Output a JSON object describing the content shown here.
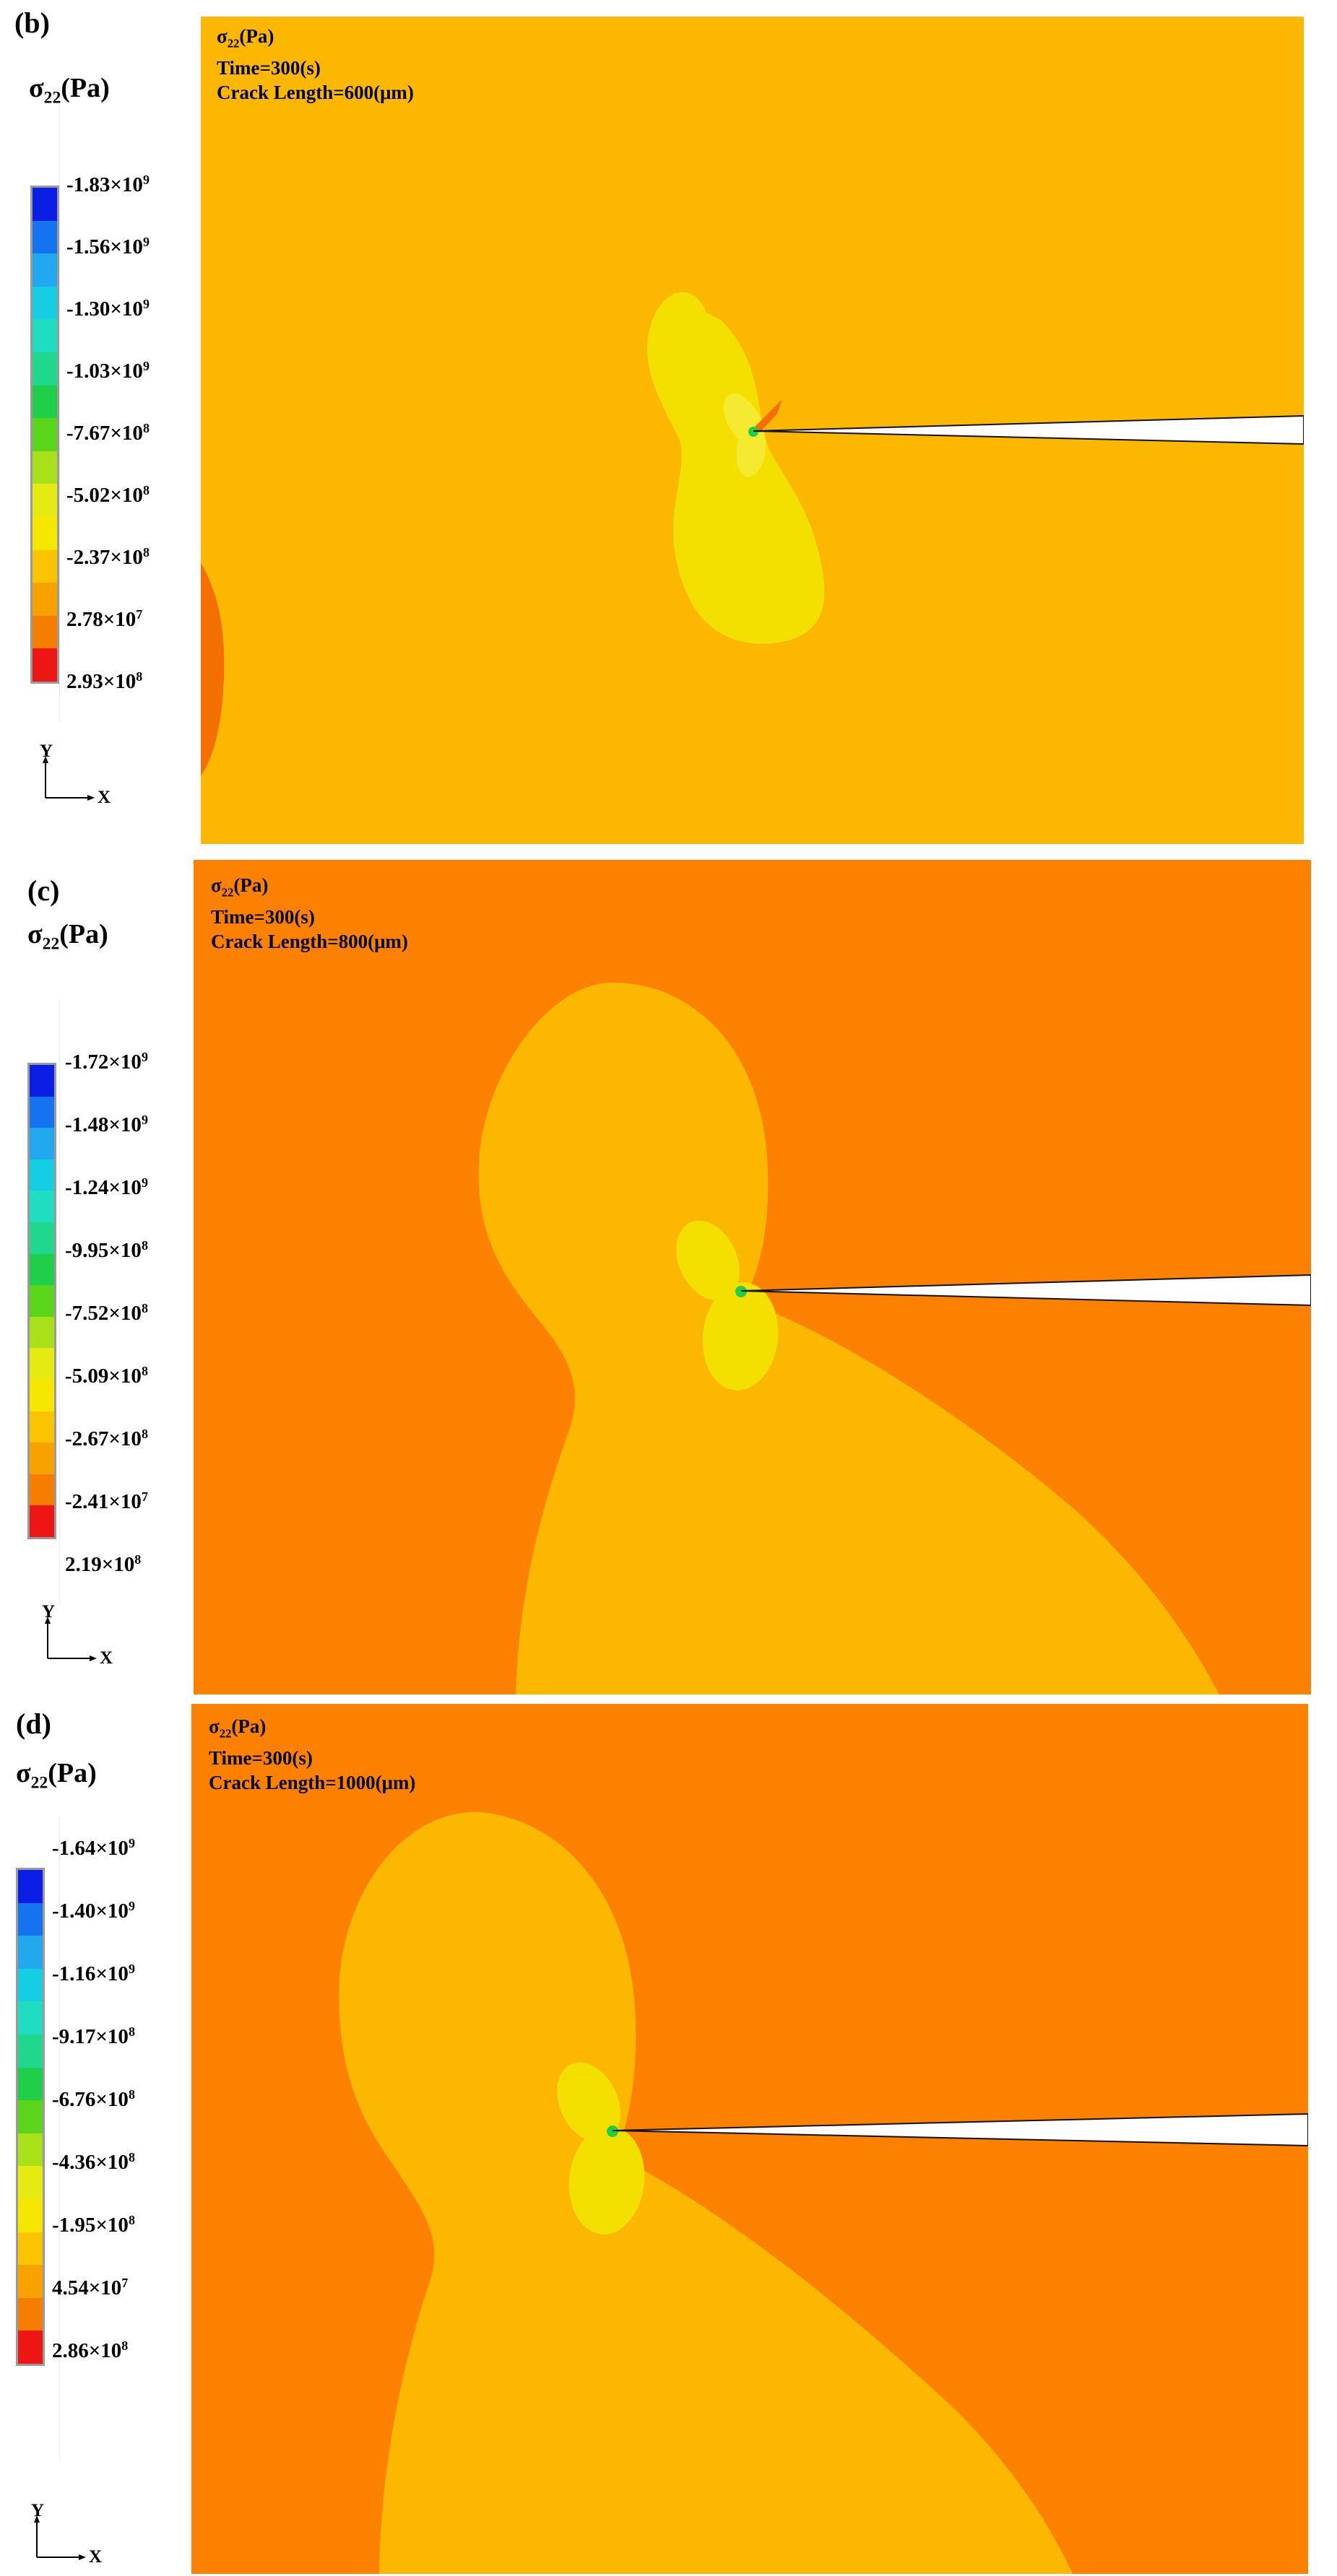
{
  "panels": [
    {
      "tag": "(b)",
      "legend_title": {
        "symbol": "σ",
        "sub": "22",
        "unit": "(Pa)"
      },
      "ticks": [
        {
          "m": "-1.83",
          "e": "9"
        },
        {
          "m": "-1.56",
          "e": "9"
        },
        {
          "m": "-1.30",
          "e": "9"
        },
        {
          "m": "-1.03",
          "e": "9"
        },
        {
          "m": "-7.67",
          "e": "8"
        },
        {
          "m": "-5.02",
          "e": "8"
        },
        {
          "m": "-2.37",
          "e": "8"
        },
        {
          "m": "2.78",
          "e": "7"
        },
        {
          "m": "2.93",
          "e": "8"
        }
      ],
      "title": {
        "symbol": "σ",
        "sub": "22",
        "unit": "(Pa)",
        "time": "Time=300(s)",
        "crack": "Crack Length=600(μm)"
      },
      "axis": {
        "y": "Y",
        "x": "X"
      }
    },
    {
      "tag": "(c)",
      "legend_title": {
        "symbol": "σ",
        "sub": "22",
        "unit": "(Pa)"
      },
      "ticks": [
        {
          "m": "-1.72",
          "e": "9"
        },
        {
          "m": "-1.48",
          "e": "9"
        },
        {
          "m": "-1.24",
          "e": "9"
        },
        {
          "m": "-9.95",
          "e": "8"
        },
        {
          "m": "-7.52",
          "e": "8"
        },
        {
          "m": "-5.09",
          "e": "8"
        },
        {
          "m": "-2.67",
          "e": "8"
        },
        {
          "m": "-2.41",
          "e": "7"
        },
        {
          "m": "2.19",
          "e": "8"
        }
      ],
      "title": {
        "symbol": "σ",
        "sub": "22",
        "unit": "(Pa)",
        "time": "Time=300(s)",
        "crack": "Crack Length=800(μm)"
      },
      "axis": {
        "y": "Y",
        "x": "X"
      }
    },
    {
      "tag": "(d)",
      "legend_title": {
        "symbol": "σ",
        "sub": "22",
        "unit": "(Pa)"
      },
      "ticks": [
        {
          "m": "-1.64",
          "e": "9"
        },
        {
          "m": "-1.40",
          "e": "9"
        },
        {
          "m": "-1.16",
          "e": "9"
        },
        {
          "m": "-9.17",
          "e": "8"
        },
        {
          "m": "-6.76",
          "e": "8"
        },
        {
          "m": "-4.36",
          "e": "8"
        },
        {
          "m": "-1.95",
          "e": "8"
        },
        {
          "m": "4.54",
          "e": "7"
        },
        {
          "m": "2.86",
          "e": "8"
        }
      ],
      "title": {
        "symbol": "σ",
        "sub": "22",
        "unit": "(Pa)",
        "time": "Time=300(s)",
        "crack": "Crack Length=1000(μm)"
      },
      "axis": {
        "y": "Y",
        "x": "X"
      }
    }
  ],
  "colors": {
    "colorbar": [
      "#0a1ee6",
      "#1473ef",
      "#21a8ee",
      "#14cfe4",
      "#20dcc0",
      "#1fd88e",
      "#1fcf49",
      "#5ad51c",
      "#a8e01a",
      "#e5ea12",
      "#f5e700",
      "#fbc400",
      "#f8a200",
      "#f57e00",
      "#ee1515"
    ],
    "far_field_b": "#fcb800",
    "far_field_cd": "#fc8100",
    "lobe": "#fcb800",
    "inner": "#f3df00",
    "edge_red": "#f37000",
    "crack": "#ffffff"
  }
}
